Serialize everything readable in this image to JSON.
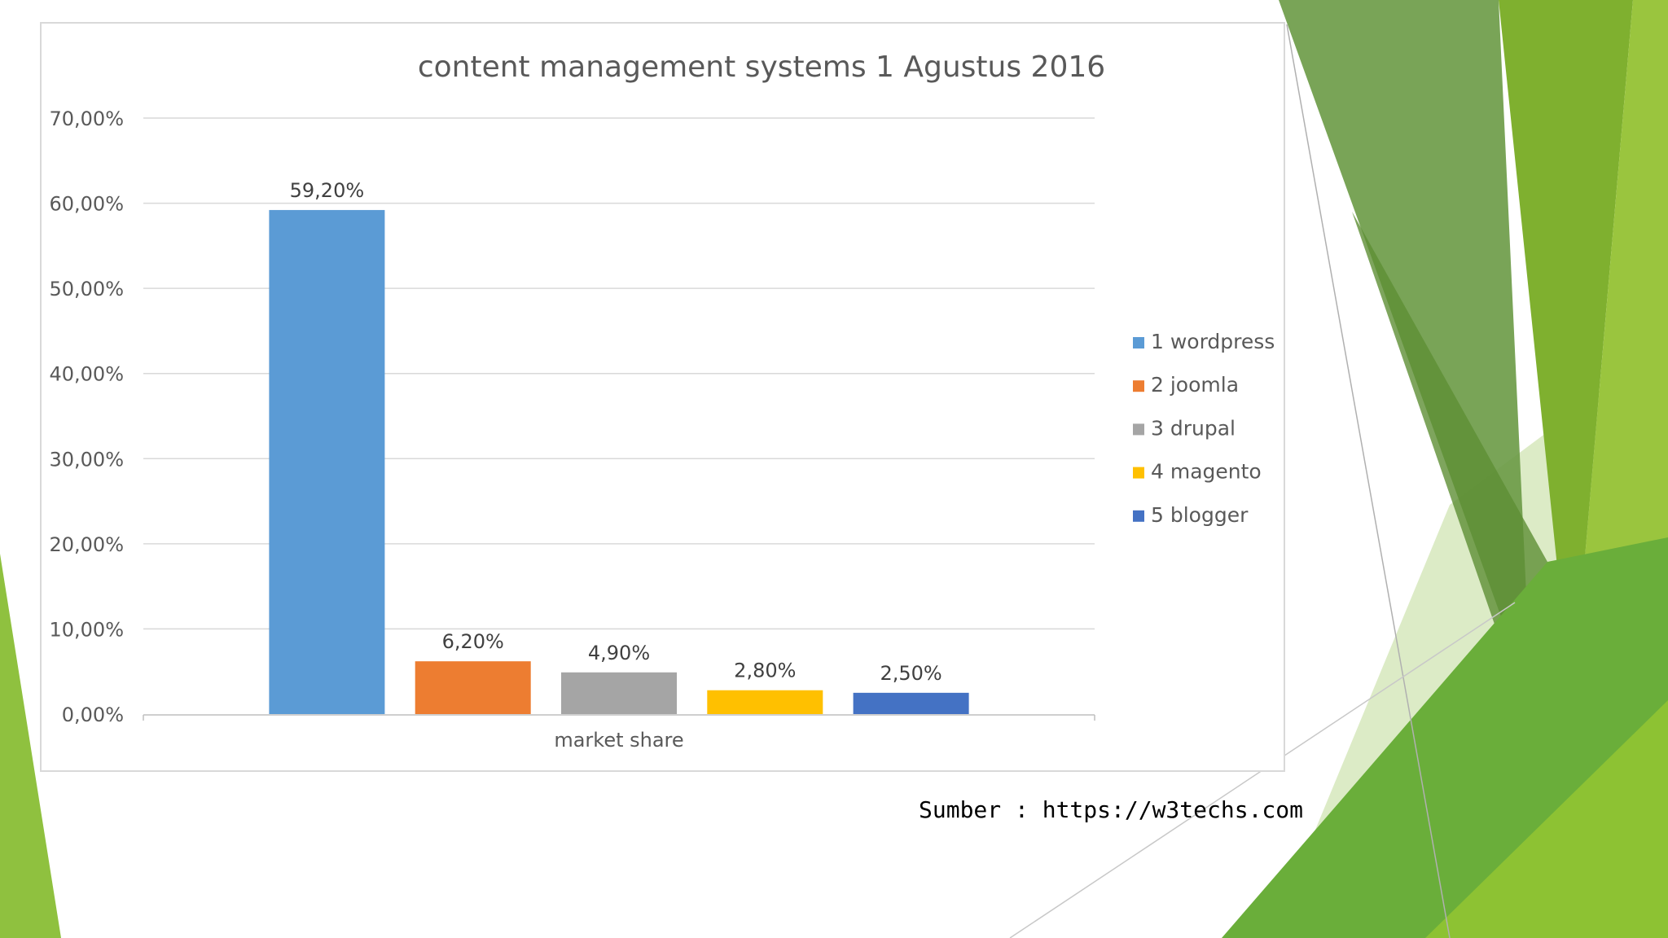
{
  "slide": {
    "source_note": "Sumber : https://w3techs.com"
  },
  "colors": {
    "theme_green_dark": "#4e8a2a",
    "theme_green": "#7cb342",
    "theme_green_light": "#c5e1a5"
  },
  "chart_data": {
    "type": "bar",
    "title": "content management systems 1 Agustus 2016",
    "xlabel": "",
    "ylabel": "",
    "categories": [
      "market share"
    ],
    "ylim": [
      0,
      70
    ],
    "yticks": [
      "0,00%",
      "10,00%",
      "20,00%",
      "30,00%",
      "40,00%",
      "50,00%",
      "60,00%",
      "70,00%"
    ],
    "grid": true,
    "legend_position": "right",
    "series": [
      {
        "name": "1 wordpress",
        "values": [
          59.2
        ],
        "label": "59,20%",
        "color": "#5b9bd5"
      },
      {
        "name": "2 joomla",
        "values": [
          6.2
        ],
        "label": "6,20%",
        "color": "#ed7d31"
      },
      {
        "name": "3 drupal",
        "values": [
          4.9
        ],
        "label": "4,90%",
        "color": "#a5a5a5"
      },
      {
        "name": "4 magento",
        "values": [
          2.8
        ],
        "label": "2,80%",
        "color": "#ffc000"
      },
      {
        "name": "5 blogger",
        "values": [
          2.5
        ],
        "label": "2,50%",
        "color": "#4472c4"
      }
    ]
  }
}
